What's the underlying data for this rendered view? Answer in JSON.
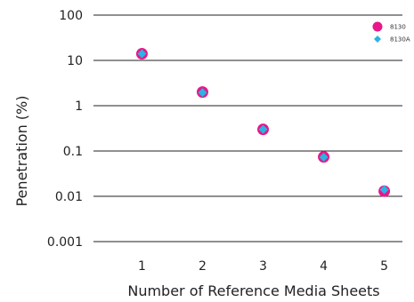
{
  "chart_data": {
    "type": "scatter",
    "x": [
      1,
      2,
      3,
      4,
      5
    ],
    "series": [
      {
        "name": "8130",
        "values": [
          14,
          2.0,
          0.3,
          0.074,
          0.013
        ],
        "color": "#e8178a",
        "marker": "circle"
      },
      {
        "name": "8130A",
        "values": [
          14,
          1.95,
          0.3,
          0.073,
          0.014
        ],
        "color": "#2bb3e3",
        "marker": "diamond"
      }
    ],
    "xlabel": "Number of Reference Media Sheets",
    "ylabel": "Penetration (%)",
    "xticks": [
      "1",
      "2",
      "3",
      "4",
      "5"
    ],
    "yticks": [
      "100",
      "10",
      "1",
      "0.1",
      "0.01",
      "0.001"
    ],
    "xlim": [
      0.2,
      5.3
    ],
    "ylim": [
      0.001,
      100
    ],
    "yscale": "log",
    "grid": "horizontal",
    "legend": "top-right"
  }
}
